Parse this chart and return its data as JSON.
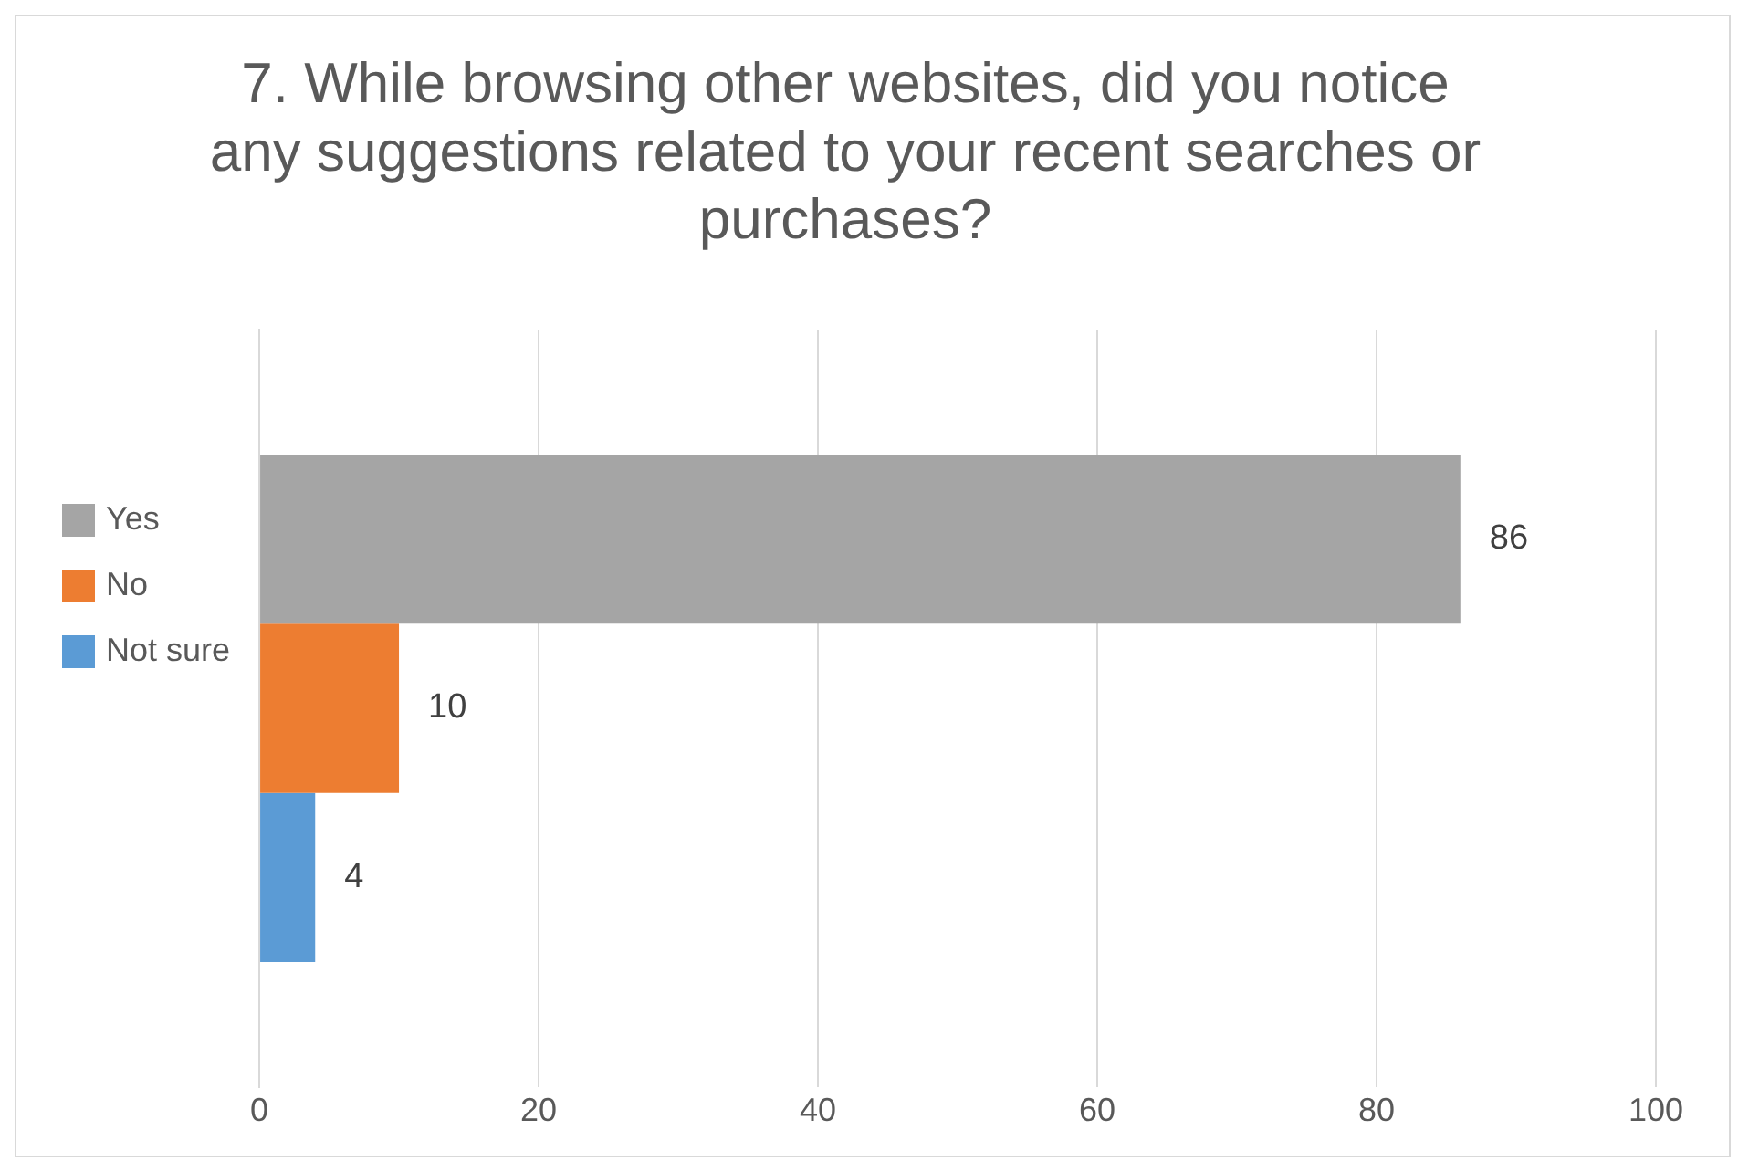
{
  "chart_data": {
    "type": "bar",
    "orientation": "horizontal",
    "title": "7. While browsing other websites, did you notice any suggestions related to your recent searches or purchases?",
    "categories": [
      null
    ],
    "series": [
      {
        "name": "Yes",
        "color": "#a5a5a5",
        "values": [
          86
        ]
      },
      {
        "name": "No",
        "color": "#ed7d31",
        "values": [
          10
        ]
      },
      {
        "name": "Not sure",
        "color": "#5b9bd5",
        "values": [
          4
        ]
      }
    ],
    "xlim": [
      0,
      100
    ],
    "xticks": [
      0,
      20,
      40,
      60,
      80,
      100
    ],
    "grid": "x",
    "legend": "left",
    "data_labels": true
  }
}
